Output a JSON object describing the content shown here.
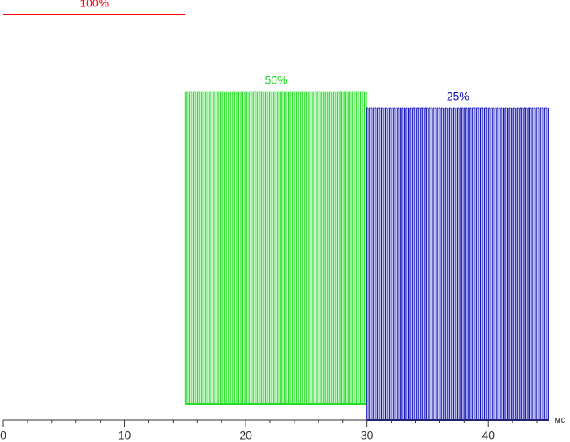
{
  "chart_data": {
    "type": "pulse",
    "x_label": "мс",
    "xlim": [
      0,
      45
    ],
    "xticks": [
      0,
      10,
      20,
      30,
      40
    ],
    "xminorticks": [
      2,
      4,
      6,
      8,
      12,
      14,
      16,
      18,
      22,
      24,
      26,
      28,
      32,
      34,
      36,
      38,
      42,
      44
    ],
    "ylim": [
      0,
      100
    ],
    "series": [
      {
        "name": "100%",
        "color": "#ff0000",
        "start": 0,
        "end": 15,
        "high": 100,
        "low": 100
      },
      {
        "name": "50%",
        "color": "#22dd22",
        "start": 15,
        "end": 30,
        "high": 81,
        "low": 4,
        "period": 0.17
      },
      {
        "name": "25%",
        "color": "#1111bb",
        "start": 30,
        "end": 45,
        "high": 77,
        "low": 0,
        "period": 0.17
      }
    ]
  }
}
